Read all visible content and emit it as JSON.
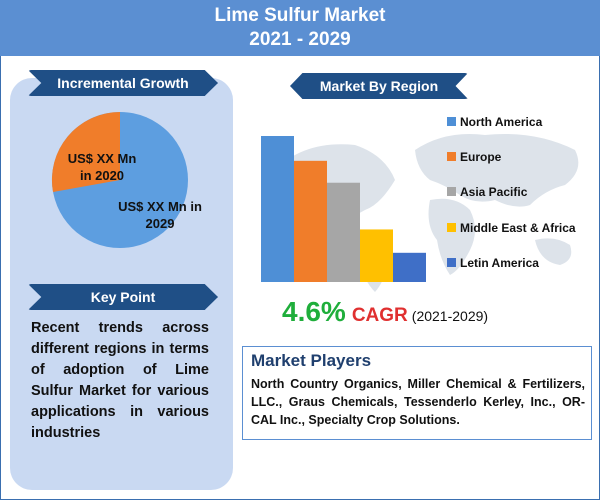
{
  "header": {
    "title_line1": "Lime Sulfur Market",
    "title_line2": "2021 - 2029"
  },
  "incremental": {
    "heading": "Incremental Growth",
    "label_2020": "US$ XX Mn in 2020",
    "label_2020_lines": [
      "US$ XX Mn",
      "in 2020"
    ],
    "label_2029_lines": [
      "US$ XX Mn in",
      "2029"
    ],
    "colors": {
      "y2020": "#f07d2a",
      "y2029": "#5d9ee0"
    }
  },
  "key_point": {
    "heading": "Key Point",
    "text": "Recent trends across different regions in terms of adoption of Lime Sulfur Market for various applications in various industries"
  },
  "region": {
    "heading": "Market By Region"
  },
  "chart_data": {
    "type": "bar",
    "title": "Market By Region",
    "categories": [
      "North America",
      "Europe",
      "Asia Pacific",
      "Middle East & Africa",
      "Letin America"
    ],
    "values": [
      100,
      83,
      68,
      36,
      20
    ],
    "colors": [
      "#4e8fd6",
      "#f07d2a",
      "#a6a6a6",
      "#ffc000",
      "#3f6fc7"
    ],
    "axes_shown": false,
    "grid": false,
    "legend_position": "right"
  },
  "cagr": {
    "value": "4.6%",
    "label": "CAGR",
    "period": "(2021-2029)"
  },
  "players": {
    "heading": "Market Players",
    "text": "North Country Organics, Miller Chemical & Fertilizers, LLC., Graus Chemicals, Tessenderlo Kerley, Inc., OR-CAL Inc., Specialty Crop Solutions."
  }
}
